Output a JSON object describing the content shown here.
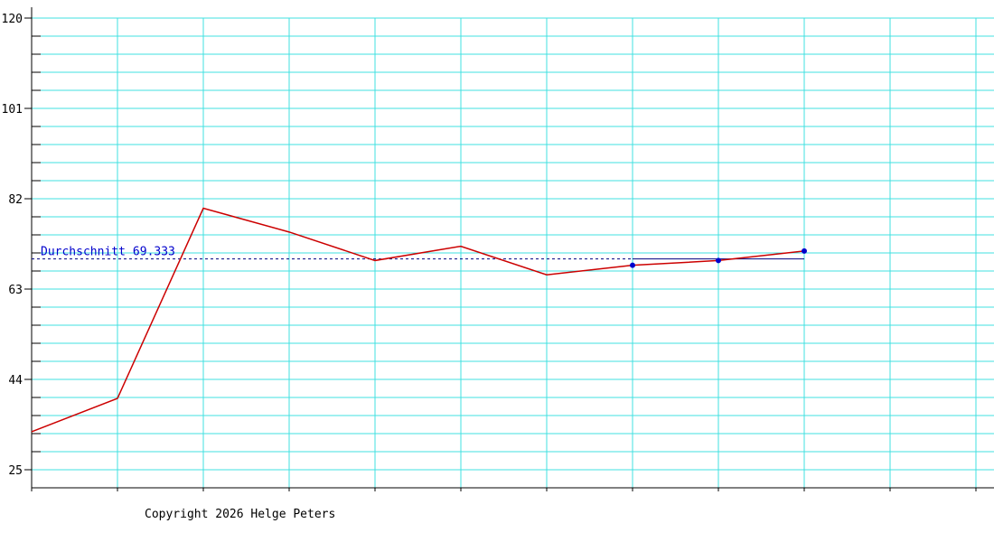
{
  "chart_data": {
    "type": "line",
    "categories": [
      null,
      null,
      null,
      null,
      null,
      null,
      null,
      null,
      null,
      null,
      null,
      null
    ],
    "series": [
      {
        "color": "#cc0000",
        "style": "line",
        "values": [
          33,
          40,
          80,
          75,
          69,
          72,
          66,
          68,
          69,
          71,
          null,
          null
        ]
      },
      {
        "color": "#0000cc",
        "style": "markers",
        "values": [
          null,
          null,
          null,
          null,
          null,
          null,
          null,
          68,
          69,
          71,
          null,
          null
        ]
      }
    ],
    "average": {
      "label": "Durchschnitt",
      "value": 69.333,
      "color": "#000080",
      "label_color": "#0000cc"
    },
    "ylim": [
      21.2,
      120
    ],
    "yticks": [
      25,
      44,
      63,
      82,
      101,
      120
    ],
    "grid": true,
    "grid_color": "#40e0e0",
    "footer": "Copyright 2026 Helge Peters"
  }
}
